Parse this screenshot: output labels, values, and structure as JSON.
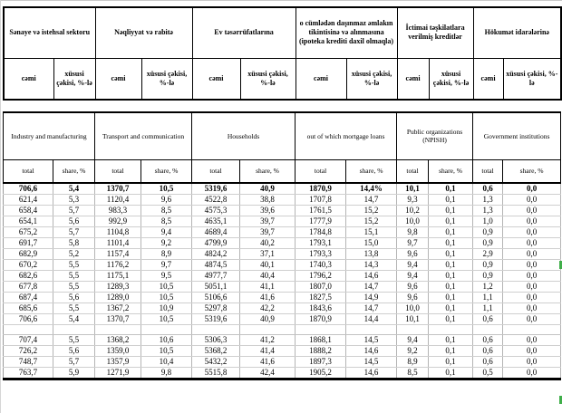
{
  "header_az": {
    "sub_total": "cəmi",
    "sub_share": "xüsusi çəkisi, %-lə",
    "columns": [
      {
        "title": "Sənaye və istehsal sektoru"
      },
      {
        "title": "Nəqliyyat və rabitə"
      },
      {
        "title": "Ev təsərrüfatlarına"
      },
      {
        "title": "o cümlədən daşınmaz əmlakın tikintisinə və alınmasına (ipoteka krediti daxil olmaqla)"
      },
      {
        "title": "İctimai təşkilatlara verilmiş kreditlər"
      },
      {
        "title": "Hökumət idarələrinə"
      }
    ]
  },
  "header_en": {
    "sub_total": "total",
    "sub_share": "share, %",
    "columns": [
      {
        "title": "Industry and manufacturing"
      },
      {
        "title": "Transport and communication"
      },
      {
        "title": "Households"
      },
      {
        "title": "out of which mortgage loans"
      },
      {
        "title": "Public organizations (NPISH)"
      },
      {
        "title": "Government institutions"
      }
    ]
  },
  "table": {
    "section1_rows": [
      [
        "706,6",
        "5,4",
        "1370,7",
        "10,5",
        "5319,6",
        "40,9",
        "1870,9",
        "14,4%",
        "10,1",
        "0,1",
        "0,6",
        "0,0"
      ],
      [
        "621,4",
        "5,3",
        "1120,4",
        "9,6",
        "4522,8",
        "38,8",
        "1707,8",
        "14,7",
        "9,3",
        "0,1",
        "1,3",
        "0,0"
      ],
      [
        "658,4",
        "5,7",
        "983,3",
        "8,5",
        "4575,3",
        "39,6",
        "1761,5",
        "15,2",
        "10,2",
        "0,1",
        "1,3",
        "0,0"
      ],
      [
        "654,1",
        "5,6",
        "992,9",
        "8,5",
        "4635,1",
        "39,7",
        "1777,9",
        "15,2",
        "10,0",
        "0,1",
        "1,0",
        "0,0"
      ],
      [
        "675,2",
        "5,7",
        "1104,8",
        "9,4",
        "4689,4",
        "39,7",
        "1784,8",
        "15,1",
        "9,8",
        "0,1",
        "0,9",
        "0,0"
      ],
      [
        "691,7",
        "5,8",
        "1101,4",
        "9,2",
        "4799,9",
        "40,2",
        "1793,1",
        "15,0",
        "9,7",
        "0,1",
        "0,9",
        "0,0"
      ],
      [
        "682,9",
        "5,2",
        "1157,4",
        "8,9",
        "4824,2",
        "37,1",
        "1793,3",
        "13,8",
        "9,6",
        "0,1",
        "2,9",
        "0,0"
      ],
      [
        "670,2",
        "5,5",
        "1176,2",
        "9,7",
        "4874,5",
        "40,1",
        "1740,3",
        "14,3",
        "9,4",
        "0,1",
        "0,9",
        "0,0"
      ],
      [
        "682,6",
        "5,5",
        "1175,1",
        "9,5",
        "4977,7",
        "40,4",
        "1796,2",
        "14,6",
        "9,4",
        "0,1",
        "0,9",
        "0,0"
      ],
      [
        "677,8",
        "5,5",
        "1289,3",
        "10,5",
        "5051,1",
        "41,1",
        "1807,0",
        "14,7",
        "9,6",
        "0,1",
        "1,2",
        "0,0"
      ],
      [
        "687,4",
        "5,6",
        "1289,0",
        "10,5",
        "5106,6",
        "41,6",
        "1827,5",
        "14,9",
        "9,6",
        "0,1",
        "1,1",
        "0,0"
      ],
      [
        "685,6",
        "5,5",
        "1367,2",
        "10,9",
        "5297,8",
        "42,2",
        "1843,6",
        "14,7",
        "10,0",
        "0,1",
        "1,1",
        "0,0"
      ],
      [
        "706,6",
        "5,4",
        "1370,7",
        "10,5",
        "5319,6",
        "40,9",
        "1870,9",
        "14,4",
        "10,1",
        "0,1",
        "0,6",
        "0,0"
      ]
    ],
    "section2_rows": [
      [
        "707,4",
        "5,5",
        "1368,2",
        "10,6",
        "5306,3",
        "41,2",
        "1868,1",
        "14,5",
        "9,4",
        "0,1",
        "0,6",
        "0,0"
      ],
      [
        "726,2",
        "5,6",
        "1359,0",
        "10,5",
        "5368,2",
        "41,4",
        "1888,2",
        "14,6",
        "9,2",
        "0,1",
        "0,6",
        "0,0"
      ],
      [
        "748,7",
        "5,7",
        "1357,9",
        "10,4",
        "5432,2",
        "41,6",
        "1897,3",
        "14,5",
        "8,9",
        "0,1",
        "0,6",
        "0,0"
      ],
      [
        "763,7",
        "5,9",
        "1271,9",
        "9,8",
        "5515,8",
        "42,4",
        "1905,2",
        "14,6",
        "8,5",
        "0,1",
        "0,5",
        "0,0"
      ]
    ]
  },
  "colors": {
    "marker_green": "#3fae49",
    "grid_gray": "#b4b4b4",
    "border_black": "#000000"
  }
}
